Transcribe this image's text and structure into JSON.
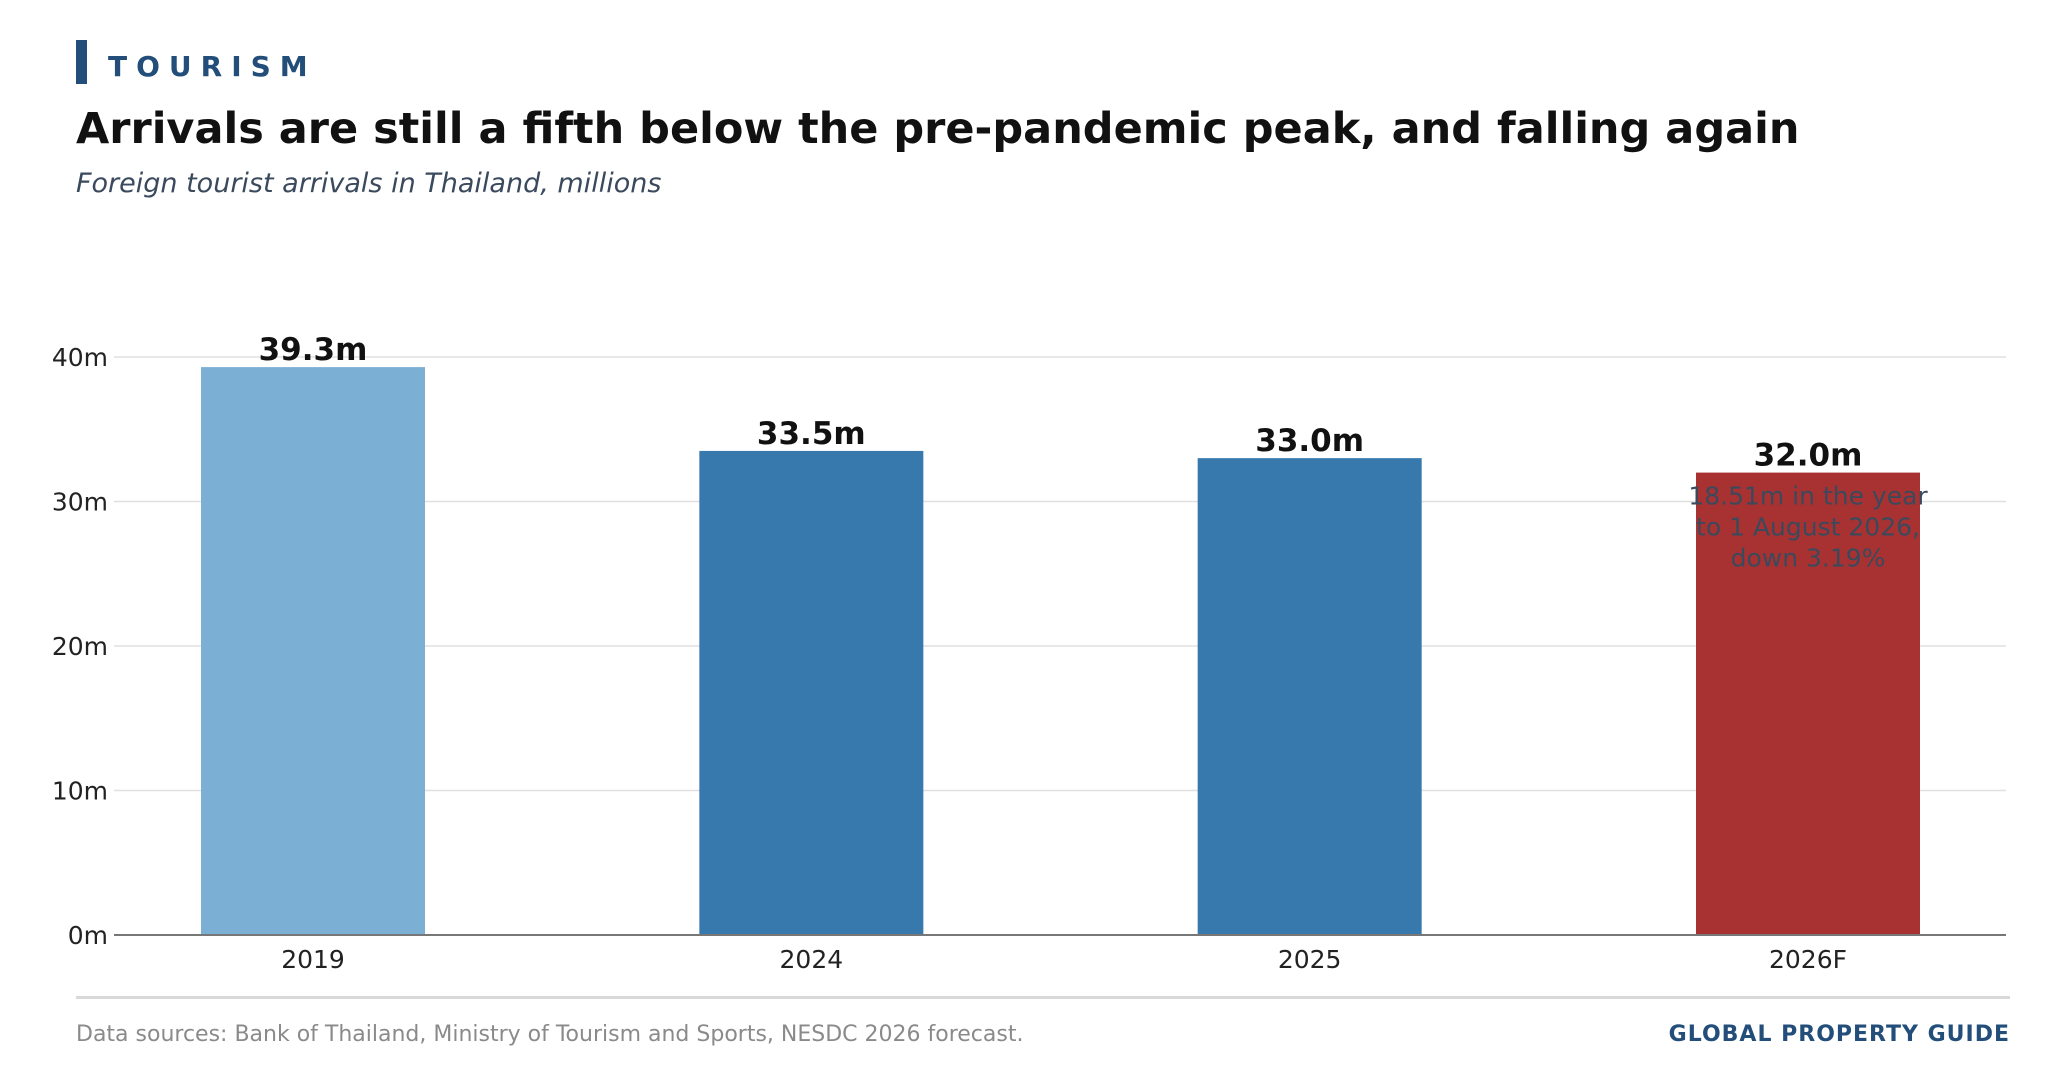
{
  "header": {
    "kicker": "TOURISM",
    "title": "Arrivals are still a fifth below the pre-pandemic peak, and falling again",
    "subtitle": "Foreign tourist arrivals in Thailand, millions"
  },
  "footer": {
    "source": "Data sources: Bank of Thailand, Ministry of Tourism and Sports, NESDC 2026 forecast.",
    "brand": "GLOBAL PROPERTY GUIDE"
  },
  "colors": {
    "accent": "#234e7a",
    "bar_2019": "#7bafd4",
    "bar_mid": "#3778ad",
    "bar_forecast": "#a83232",
    "annotation": "#3a4a5c"
  },
  "chart_data": {
    "type": "bar",
    "categories": [
      "2019",
      "2024",
      "2025",
      "2026F"
    ],
    "values": [
      39.3,
      33.5,
      33.0,
      32.0
    ],
    "value_labels": [
      "39.3m",
      "33.5m",
      "33.0m",
      "32.0m"
    ],
    "bar_colors": [
      "#7bafd4",
      "#3778ad",
      "#3778ad",
      "#a83232"
    ],
    "ylim": [
      0,
      40
    ],
    "yticks": [
      0,
      10,
      20,
      30,
      40
    ],
    "ytick_labels": [
      "0m",
      "10m",
      "20m",
      "30m",
      "40m"
    ],
    "grid": true,
    "annotation": {
      "category": "2026F",
      "lines": [
        "18.51m in the year",
        "to 1 August 2026,",
        "down 3.19%"
      ]
    }
  }
}
